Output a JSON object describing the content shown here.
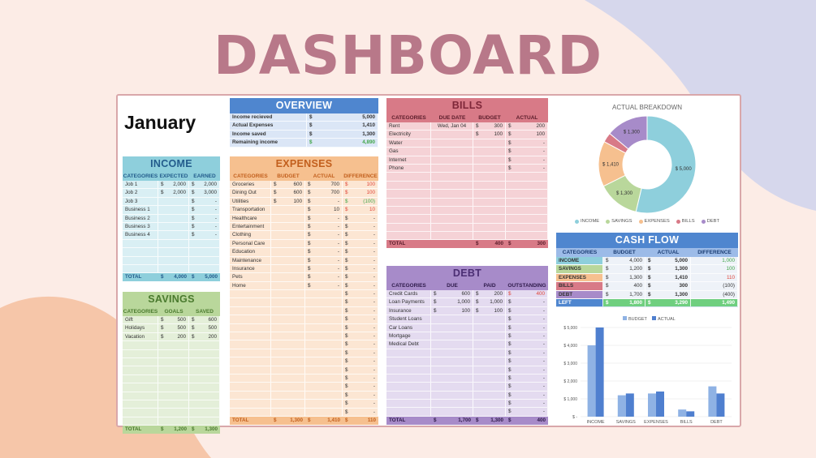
{
  "title": "DASHBOARD",
  "month": "January",
  "colors": {
    "income": "#8ecfdc",
    "savings": "#b9d79b",
    "expenses": "#f6c08f",
    "bills": "#d87a87",
    "debt": "#a78bc9",
    "overview": "#4f86cf",
    "cashflow": "#4f86cf"
  },
  "overview": {
    "title": "OVERVIEW",
    "rows": [
      {
        "label": "Income recieved",
        "cur": "$",
        "value": "5,000",
        "cls": ""
      },
      {
        "label": "Actual Expenses",
        "cur": "$",
        "value": "1,410",
        "cls": ""
      },
      {
        "label": "Income saved",
        "cur": "$",
        "value": "1,300",
        "cls": ""
      },
      {
        "label": "Remaining income",
        "cur": "$",
        "value": "4,890",
        "cls": "pos"
      }
    ]
  },
  "income": {
    "title": "INCOME",
    "headers": [
      "CATEGORIES",
      "EXPECTED",
      "EARNED"
    ],
    "rows": [
      [
        "Job 1",
        "$",
        "2,000",
        "$",
        "2,000"
      ],
      [
        "Job 2",
        "$",
        "2,000",
        "$",
        "3,000"
      ],
      [
        "Job 3",
        "",
        "",
        "$",
        "-"
      ],
      [
        "Business 1",
        "",
        "",
        "$",
        "-"
      ],
      [
        "Business 2",
        "",
        "",
        "$",
        "-"
      ],
      [
        "Business 3",
        "",
        "",
        "$",
        "-"
      ],
      [
        "Business 4",
        "",
        "",
        "$",
        "-"
      ],
      [
        "",
        "",
        "",
        "",
        ""
      ],
      [
        "",
        "",
        "",
        "",
        ""
      ],
      [
        "",
        "",
        "",
        "",
        ""
      ],
      [
        "",
        "",
        "",
        "",
        ""
      ]
    ],
    "total": [
      "TOTAL",
      "$",
      "4,000",
      "$",
      "5,000"
    ]
  },
  "savings": {
    "title": "SAVINGS",
    "headers": [
      "CATEGORIES",
      "GOALS",
      "SAVED"
    ],
    "rows": [
      [
        "Gift",
        "$",
        "500",
        "$",
        "600"
      ],
      [
        "Holidays",
        "$",
        "500",
        "$",
        "500"
      ],
      [
        "Vacation",
        "$",
        "200",
        "$",
        "200"
      ],
      [
        "",
        "",
        "",
        "",
        ""
      ],
      [
        "",
        "",
        "",
        "",
        ""
      ],
      [
        "",
        "",
        "",
        "",
        ""
      ],
      [
        "",
        "",
        "",
        "",
        ""
      ],
      [
        "",
        "",
        "",
        "",
        ""
      ],
      [
        "",
        "",
        "",
        "",
        ""
      ],
      [
        "",
        "",
        "",
        "",
        ""
      ],
      [
        "",
        "",
        "",
        "",
        ""
      ],
      [
        "",
        "",
        "",
        "",
        ""
      ],
      [
        "",
        "",
        "",
        "",
        ""
      ]
    ],
    "total": [
      "TOTAL",
      "$",
      "1,200",
      "$",
      "1,300"
    ]
  },
  "expenses": {
    "title": "EXPENSES",
    "headers": [
      "CATEGORIES",
      "BUDGET",
      "ACTUAL",
      "DIFFERENCE"
    ],
    "rows": [
      [
        "Groceries",
        "$",
        "600",
        "$",
        "700",
        "$",
        "100",
        "neg"
      ],
      [
        "Dining Out",
        "$",
        "600",
        "$",
        "700",
        "$",
        "100",
        "neg"
      ],
      [
        "Utilities",
        "$",
        "100",
        "$",
        "-",
        "$",
        "(100)",
        "pos"
      ],
      [
        "Transportation",
        "",
        "",
        "$",
        "10",
        "$",
        "10",
        "neg"
      ],
      [
        "Healthcare",
        "",
        "",
        "$",
        "-",
        "$",
        "-",
        ""
      ],
      [
        "Entertainment",
        "",
        "",
        "$",
        "-",
        "$",
        "-",
        ""
      ],
      [
        "Clothing",
        "",
        "",
        "$",
        "-",
        "$",
        "-",
        ""
      ],
      [
        "Personal Care",
        "",
        "",
        "$",
        "-",
        "$",
        "-",
        ""
      ],
      [
        "Education",
        "",
        "",
        "$",
        "-",
        "$",
        "-",
        ""
      ],
      [
        "Maintenance",
        "",
        "",
        "$",
        "-",
        "$",
        "-",
        ""
      ],
      [
        "Insurance",
        "",
        "",
        "$",
        "-",
        "$",
        "-",
        ""
      ],
      [
        "Pets",
        "",
        "",
        "$",
        "-",
        "$",
        "-",
        ""
      ],
      [
        "Home",
        "",
        "",
        "$",
        "-",
        "$",
        "-",
        ""
      ],
      [
        "",
        "",
        "",
        "",
        "",
        "$",
        "-",
        ""
      ],
      [
        "",
        "",
        "",
        "",
        "",
        "$",
        "-",
        ""
      ],
      [
        "",
        "",
        "",
        "",
        "",
        "$",
        "-",
        ""
      ],
      [
        "",
        "",
        "",
        "",
        "",
        "$",
        "-",
        ""
      ],
      [
        "",
        "",
        "",
        "",
        "",
        "$",
        "-",
        ""
      ],
      [
        "",
        "",
        "",
        "",
        "",
        "$",
        "-",
        ""
      ],
      [
        "",
        "",
        "",
        "",
        "",
        "$",
        "-",
        ""
      ],
      [
        "",
        "",
        "",
        "",
        "",
        "$",
        "-",
        ""
      ],
      [
        "",
        "",
        "",
        "",
        "",
        "$",
        "-",
        ""
      ],
      [
        "",
        "",
        "",
        "",
        "",
        "$",
        "-",
        ""
      ],
      [
        "",
        "",
        "",
        "",
        "",
        "$",
        "-",
        ""
      ],
      [
        "",
        "",
        "",
        "",
        "",
        "$",
        "-",
        ""
      ],
      [
        "",
        "",
        "",
        "",
        "",
        "$",
        "-",
        ""
      ],
      [
        "",
        "",
        "",
        "",
        "",
        "$",
        "-",
        ""
      ],
      [
        "",
        "",
        "",
        "",
        "",
        "$",
        "-",
        ""
      ]
    ],
    "total": [
      "TOTAL",
      "$",
      "1,300",
      "$",
      "1,410",
      "$",
      "110"
    ]
  },
  "bills": {
    "title": "BILLS",
    "headers": [
      "CATEGORIES",
      "DUE DATE",
      "BUDGET",
      "ACTUAL"
    ],
    "rows": [
      [
        "Rent",
        "Wed, Jan 04",
        "$",
        "300",
        "$",
        "200"
      ],
      [
        "Electricity",
        "",
        "$",
        "100",
        "$",
        "100"
      ],
      [
        "Water",
        "",
        "",
        "",
        "$",
        "-"
      ],
      [
        "Gas",
        "",
        "",
        "",
        "$",
        "-"
      ],
      [
        "Internet",
        "",
        "",
        "",
        "$",
        "-"
      ],
      [
        "Phone",
        "",
        "",
        "",
        "$",
        "-"
      ],
      [
        "",
        "",
        "",
        "",
        "",
        ""
      ],
      [
        "",
        "",
        "",
        "",
        "",
        ""
      ],
      [
        "",
        "",
        "",
        "",
        "",
        ""
      ],
      [
        "",
        "",
        "",
        "",
        "",
        ""
      ],
      [
        "",
        "",
        "",
        "",
        "",
        ""
      ],
      [
        "",
        "",
        "",
        "",
        "",
        ""
      ],
      [
        "",
        "",
        "",
        "",
        "",
        ""
      ],
      [
        "",
        "",
        "",
        "",
        "",
        ""
      ]
    ],
    "total": [
      "TOTAL",
      "",
      "$",
      "400",
      "$",
      "300"
    ]
  },
  "debt": {
    "title": "DEBT",
    "headers": [
      "CATEGORIES",
      "DUE",
      "PAID",
      "OUTSTANDING"
    ],
    "rows": [
      [
        "Credit Cards",
        "$",
        "600",
        "$",
        "200",
        "$",
        "400",
        "neg"
      ],
      [
        "Loan Payments",
        "$",
        "1,000",
        "$",
        "1,000",
        "$",
        "-",
        ""
      ],
      [
        "Insurance",
        "$",
        "100",
        "$",
        "100",
        "$",
        "-",
        ""
      ],
      [
        "Student Loans",
        "",
        "",
        "",
        "",
        "$",
        "-",
        ""
      ],
      [
        "Car Loans",
        "",
        "",
        "",
        "",
        "$",
        "-",
        ""
      ],
      [
        "Mortgage",
        "",
        "",
        "",
        "",
        "$",
        "-",
        ""
      ],
      [
        "Medical Debt",
        "",
        "",
        "",
        "",
        "$",
        "-",
        ""
      ],
      [
        "",
        "",
        "",
        "",
        "",
        "$",
        "-",
        ""
      ],
      [
        "",
        "",
        "",
        "",
        "",
        "$",
        "-",
        ""
      ],
      [
        "",
        "",
        "",
        "",
        "",
        "$",
        "-",
        ""
      ],
      [
        "",
        "",
        "",
        "",
        "",
        "$",
        "-",
        ""
      ],
      [
        "",
        "",
        "",
        "",
        "",
        "$",
        "-",
        ""
      ],
      [
        "",
        "",
        "",
        "",
        "",
        "$",
        "-",
        ""
      ],
      [
        "",
        "",
        "",
        "",
        "",
        "$",
        "-",
        ""
      ],
      [
        "",
        "",
        "",
        "",
        "",
        "$",
        "-",
        ""
      ]
    ],
    "total": [
      "TOTAL",
      "$",
      "1,700",
      "$",
      "1,300",
      "$",
      "400"
    ]
  },
  "breakdown": {
    "title": "ACTUAL BREAKDOWN",
    "slices": [
      {
        "name": "INCOME",
        "value": 5000,
        "label": "$ 5,000",
        "color": "#8ecfdc"
      },
      {
        "name": "SAVINGS",
        "value": 1300,
        "label": "$ 1,300",
        "color": "#b9d79b"
      },
      {
        "name": "EXPENSES",
        "value": 1410,
        "label": "$ 1,410",
        "color": "#f6c08f"
      },
      {
        "name": "BILLS",
        "value": 300,
        "label": "",
        "color": "#d87a87"
      },
      {
        "name": "DEBT",
        "value": 1300,
        "label": "$ 1,300",
        "color": "#a78bc9"
      }
    ]
  },
  "cashflow": {
    "title": "CASH FLOW",
    "headers": [
      "CATEGORIES",
      "BUDGET",
      "ACTUAL",
      "DIFFERENCE"
    ],
    "rows": [
      {
        "name": "INCOME",
        "cur1": "$",
        "budget": "4,000",
        "cur2": "$",
        "actual": "5,000",
        "diff": "1,000",
        "cls": "pos",
        "color": "#8ecfdc"
      },
      {
        "name": "SAVINGS",
        "cur1": "$",
        "budget": "1,200",
        "cur2": "$",
        "actual": "1,300",
        "diff": "100",
        "cls": "pos",
        "color": "#b9d79b"
      },
      {
        "name": "EXPENSES",
        "cur1": "$",
        "budget": "1,300",
        "cur2": "$",
        "actual": "1,410",
        "diff": "110",
        "cls": "neg",
        "color": "#f6c08f"
      },
      {
        "name": "BILLS",
        "cur1": "$",
        "budget": "400",
        "cur2": "$",
        "actual": "300",
        "diff": "(100)",
        "cls": "",
        "color": "#d87a87"
      },
      {
        "name": "DEBT",
        "cur1": "$",
        "budget": "1,700",
        "cur2": "$",
        "actual": "1,300",
        "diff": "(400)",
        "cls": "",
        "color": "#a78bc9"
      }
    ],
    "left": {
      "name": "LEFT",
      "cur1": "$",
      "budget": "1,800",
      "cur2": "$",
      "actual": "3,290",
      "diff": "1,490"
    }
  },
  "chart_data": {
    "type": "bar",
    "categories": [
      "INCOME",
      "SAVINGS",
      "EXPENSES",
      "BILLS",
      "DEBT"
    ],
    "series": [
      {
        "name": "BUDGET",
        "values": [
          4000,
          1200,
          1300,
          400,
          1700
        ],
        "color": "#8fb2e4"
      },
      {
        "name": "ACTUAL",
        "values": [
          5000,
          1300,
          1410,
          300,
          1300
        ],
        "color": "#4f7fcf"
      }
    ],
    "yticks": [
      "$ -",
      "$ 1,000",
      "$ 2,000",
      "$ 3,000",
      "$ 4,000",
      "$ 5,000"
    ],
    "ylim": [
      0,
      5000
    ],
    "legend": "top-center"
  }
}
